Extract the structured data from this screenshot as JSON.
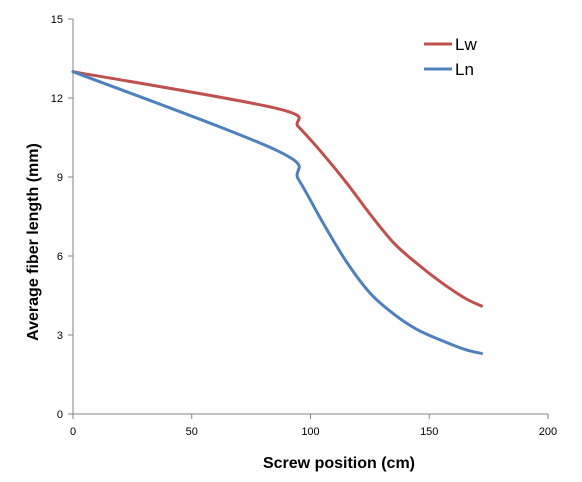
{
  "chart_data": {
    "type": "line",
    "xlabel": "Screw position  (cm)",
    "ylabel": "Average fiber length (mm)",
    "xlim": [
      0,
      200
    ],
    "ylim": [
      0,
      15
    ],
    "xticks": [
      0,
      50,
      100,
      150,
      200
    ],
    "yticks": [
      0,
      3,
      6,
      9,
      12,
      15
    ],
    "legend": "top-right",
    "grid": false,
    "series": [
      {
        "name": "Lw",
        "color": "#C0504D",
        "points": [
          [
            0,
            13.0
          ],
          [
            86,
            11.6
          ],
          [
            95,
            10.9
          ],
          [
            105,
            9.9
          ],
          [
            115,
            8.8
          ],
          [
            125,
            7.6
          ],
          [
            135,
            6.5
          ],
          [
            145,
            5.7
          ],
          [
            155,
            5.0
          ],
          [
            165,
            4.4
          ],
          [
            172,
            4.1
          ]
        ]
      },
      {
        "name": "Ln",
        "color": "#4F81BD",
        "points": [
          [
            0,
            13.0
          ],
          [
            86,
            10.0
          ],
          [
            95,
            8.9
          ],
          [
            105,
            7.3
          ],
          [
            115,
            5.8
          ],
          [
            125,
            4.6
          ],
          [
            135,
            3.8
          ],
          [
            145,
            3.2
          ],
          [
            155,
            2.8
          ],
          [
            165,
            2.45
          ],
          [
            172,
            2.3
          ]
        ]
      }
    ]
  }
}
